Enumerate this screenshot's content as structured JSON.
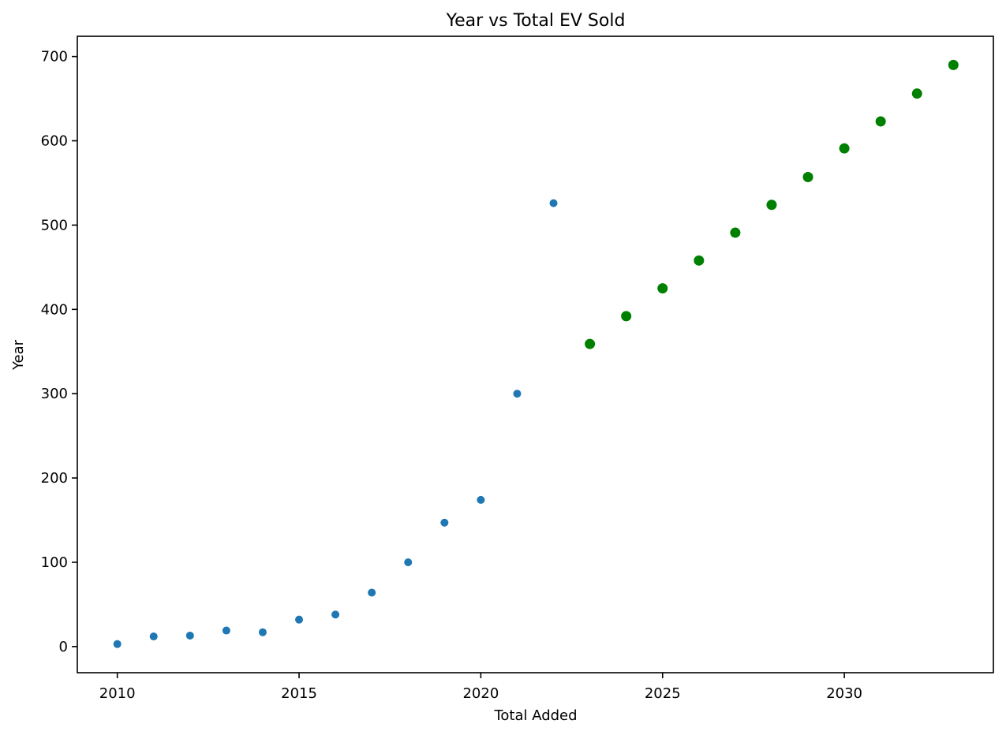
{
  "chart_data": {
    "type": "scatter",
    "title": "Year vs Total EV Sold",
    "xlabel": "Total Added",
    "ylabel": "Year",
    "xlim": [
      2008.9,
      2034.1
    ],
    "ylim": [
      -31,
      724
    ],
    "x_ticks": [
      2010,
      2015,
      2020,
      2025,
      2030
    ],
    "y_ticks": [
      0,
      100,
      200,
      300,
      400,
      500,
      600,
      700
    ],
    "grid": false,
    "legend": "none",
    "series": [
      {
        "color": "#1f77b4",
        "marker_size": "small",
        "x": [
          2010,
          2011,
          2012,
          2013,
          2014,
          2015,
          2016,
          2017,
          2018,
          2019,
          2020,
          2021,
          2022
        ],
        "y": [
          3,
          12,
          13,
          19,
          17,
          32,
          38,
          64,
          100,
          147,
          174,
          300,
          526
        ]
      },
      {
        "color": "#008000",
        "marker_size": "large",
        "x": [
          2023,
          2024,
          2025,
          2026,
          2027,
          2028,
          2029,
          2030,
          2031,
          2032,
          2033
        ],
        "y": [
          359,
          392,
          425,
          458,
          491,
          524,
          557,
          591,
          623,
          656,
          690
        ]
      }
    ]
  }
}
